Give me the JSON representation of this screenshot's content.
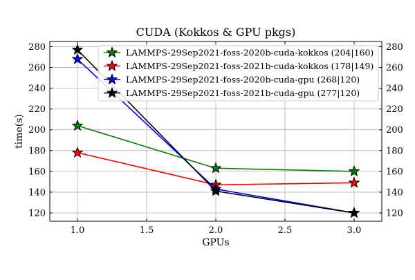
{
  "chart_data": {
    "type": "line",
    "title": "CUDA (Kokkos & GPU pkgs)",
    "xlabel": "GPUs",
    "ylabel": "time(s)",
    "xlim": [
      0.8,
      3.2
    ],
    "ylim": [
      112,
      285
    ],
    "x_ticks": [
      1.0,
      1.5,
      2.0,
      2.5,
      3.0
    ],
    "x_tick_labels": [
      "1.0",
      "1.5",
      "2.0",
      "2.5",
      "3.0"
    ],
    "y_ticks": [
      120,
      140,
      160,
      180,
      200,
      220,
      240,
      260,
      280
    ],
    "y_tick_labels": [
      "120",
      "140",
      "160",
      "180",
      "200",
      "220",
      "240",
      "260",
      "280"
    ],
    "grid": true,
    "legend_position": "top-right",
    "marker": "star",
    "series": [
      {
        "name": "LAMMPS-29Sep2021-foss-2020b-cuda-kokkos (204|160)",
        "color": "#008000",
        "x": [
          1,
          2,
          3
        ],
        "y": [
          204,
          163,
          160
        ]
      },
      {
        "name": "LAMMPS-29Sep2021-foss-2021b-cuda-kokkos (178|149)",
        "color": "#ff0000",
        "x": [
          1,
          2,
          3
        ],
        "y": [
          178,
          147,
          149
        ]
      },
      {
        "name": "LAMMPS-29Sep2021-foss-2020b-cuda-gpu (268|120)",
        "color": "#0000ff",
        "x": [
          1,
          2,
          3
        ],
        "y": [
          268,
          143,
          120
        ]
      },
      {
        "name": "LAMMPS-29Sep2021-foss-2021b-cuda-gpu (277|120)",
        "color": "#000000",
        "x": [
          1,
          2,
          3
        ],
        "y": [
          277,
          141,
          120
        ]
      }
    ]
  }
}
